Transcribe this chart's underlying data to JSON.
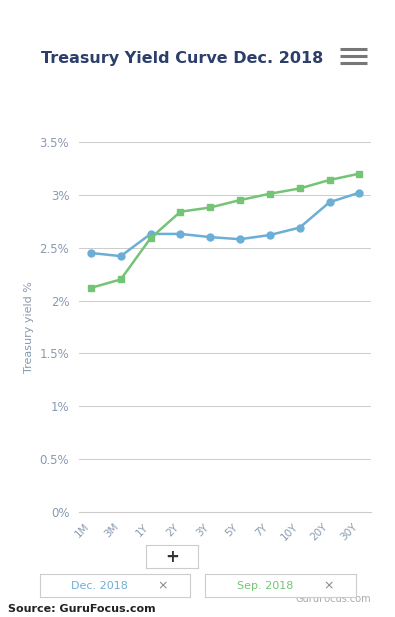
{
  "title": "Treasury Yield Curve Dec. 2018",
  "ylabel": "Treasury yield %",
  "x_labels": [
    "1M",
    "3M",
    "1Y",
    "2Y",
    "3Y",
    "5Y",
    "7Y",
    "10Y",
    "20Y",
    "30Y"
  ],
  "dec2018": [
    2.45,
    2.42,
    2.63,
    2.63,
    2.6,
    2.58,
    2.62,
    2.69,
    2.93,
    3.02
  ],
  "sep2018": [
    2.12,
    2.2,
    2.59,
    2.84,
    2.88,
    2.95,
    3.01,
    3.06,
    3.14,
    3.2
  ],
  "dec_color": "#6baed6",
  "sep_color": "#74c476",
  "bg_color": "#ffffff",
  "grid_color": "#cccccc",
  "title_color": "#2c3e6b",
  "axis_label_color": "#8a9ab0",
  "tick_color": "#8a9ab0",
  "ylim": [
    0,
    3.5
  ],
  "yticks": [
    0,
    0.5,
    1.0,
    1.5,
    2.0,
    2.5,
    3.0,
    3.5
  ],
  "ytick_labels": [
    "0%",
    "0.5%",
    "1%",
    "1.5%",
    "2%",
    "2.5%",
    "3%",
    "3.5%"
  ],
  "source_text": "Source: GuruFocus.com",
  "gurufocus_text": "GuruFocus.com",
  "legend_dec": "Dec. 2018",
  "legend_sep": "Sep. 2018"
}
